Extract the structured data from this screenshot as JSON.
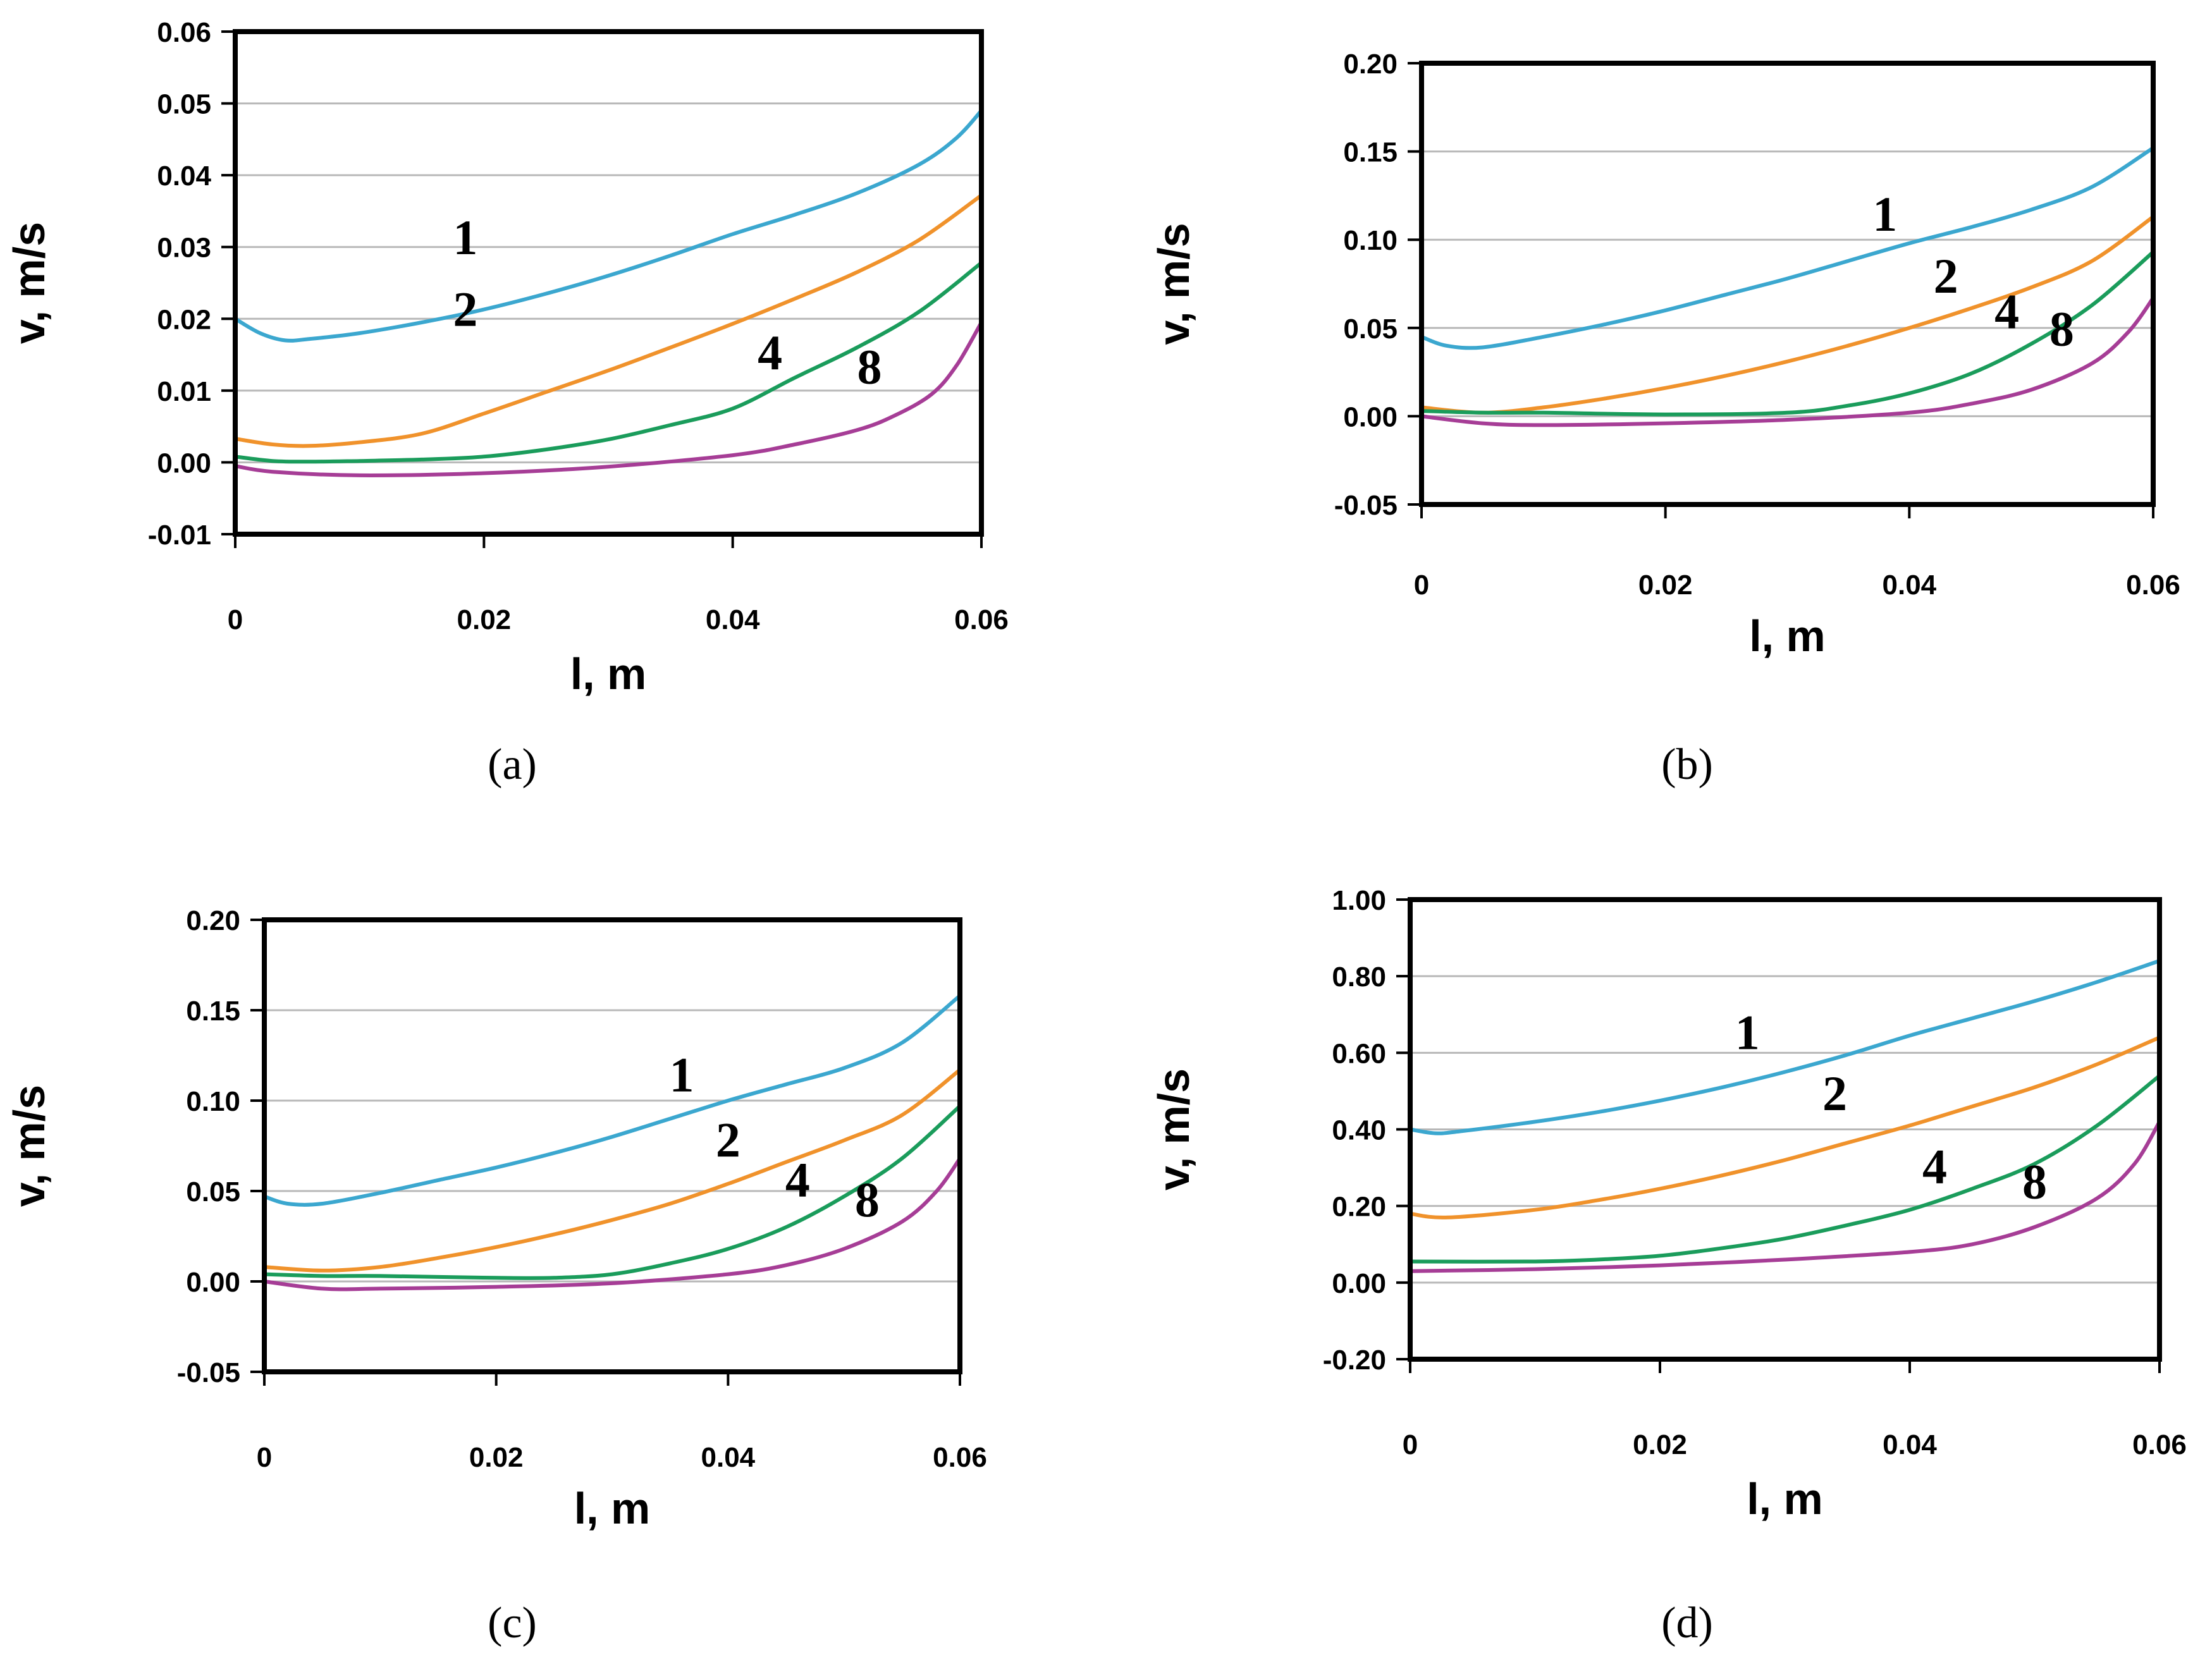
{
  "chart_data": [
    {
      "type": "line",
      "caption": "(a)",
      "xlabel": "l, m",
      "ylabel": "v, m/s",
      "xlim": [
        0,
        0.06
      ],
      "ylim": [
        -0.01,
        0.06
      ],
      "xticks": [
        "0",
        "0.02",
        "0.04",
        "0.06"
      ],
      "yticks": [
        "-0.01",
        "0.00",
        "0.01",
        "0.02",
        "0.03",
        "0.04",
        "0.05",
        "0.06"
      ],
      "series": [
        {
          "name": "1",
          "color": "#3ba7cf",
          "x": [
            0,
            0.002,
            0.004,
            0.006,
            0.01,
            0.015,
            0.02,
            0.025,
            0.03,
            0.035,
            0.04,
            0.045,
            0.05,
            0.055,
            0.058,
            0.06
          ],
          "y": [
            0.02,
            0.018,
            0.017,
            0.0172,
            0.018,
            0.0195,
            0.0213,
            0.0235,
            0.026,
            0.0288,
            0.0318,
            0.0345,
            0.0375,
            0.0415,
            0.0452,
            0.049
          ]
        },
        {
          "name": "2",
          "color": "#f0922b",
          "x": [
            0,
            0.003,
            0.006,
            0.01,
            0.015,
            0.02,
            0.025,
            0.03,
            0.035,
            0.04,
            0.045,
            0.05,
            0.055,
            0.06
          ],
          "y": [
            0.0033,
            0.0025,
            0.0023,
            0.0028,
            0.004,
            0.0068,
            0.0098,
            0.0128,
            0.016,
            0.0193,
            0.0228,
            0.0265,
            0.031,
            0.0372
          ]
        },
        {
          "name": "4",
          "color": "#1a9c5b",
          "x": [
            0,
            0.003,
            0.006,
            0.01,
            0.015,
            0.02,
            0.025,
            0.03,
            0.035,
            0.04,
            0.045,
            0.05,
            0.055,
            0.06
          ],
          "y": [
            0.0008,
            0.0002,
            0.0001,
            0.0002,
            0.0004,
            0.0008,
            0.0018,
            0.0032,
            0.0052,
            0.0075,
            0.0118,
            0.016,
            0.021,
            0.0278
          ]
        },
        {
          "name": "8",
          "color": "#a63d96",
          "x": [
            0,
            0.003,
            0.01,
            0.02,
            0.03,
            0.04,
            0.045,
            0.05,
            0.053,
            0.056,
            0.058,
            0.06
          ],
          "y": [
            -0.0005,
            -0.0013,
            -0.0018,
            -0.0015,
            -0.0006,
            0.001,
            0.0025,
            0.0045,
            0.0065,
            0.0095,
            0.0135,
            0.0195
          ]
        }
      ]
    },
    {
      "type": "line",
      "caption": "(b)",
      "xlabel": "l, m",
      "ylabel": "v, m/s",
      "xlim": [
        0,
        0.06
      ],
      "ylim": [
        -0.05,
        0.2
      ],
      "xticks": [
        "0",
        "0.02",
        "0.04",
        "0.06"
      ],
      "yticks": [
        "-0.05",
        "0.00",
        "0.05",
        "0.10",
        "0.15",
        "0.20"
      ],
      "series": [
        {
          "name": "1",
          "color": "#3ba7cf",
          "x": [
            0,
            0.002,
            0.005,
            0.01,
            0.015,
            0.02,
            0.025,
            0.03,
            0.035,
            0.04,
            0.045,
            0.05,
            0.055,
            0.06
          ],
          "y": [
            0.045,
            0.04,
            0.039,
            0.045,
            0.052,
            0.06,
            0.069,
            0.078,
            0.088,
            0.098,
            0.107,
            0.117,
            0.13,
            0.152
          ]
        },
        {
          "name": "2",
          "color": "#f0922b",
          "x": [
            0,
            0.005,
            0.01,
            0.015,
            0.02,
            0.025,
            0.03,
            0.035,
            0.04,
            0.045,
            0.05,
            0.055,
            0.06
          ],
          "y": [
            0.005,
            0.002,
            0.005,
            0.01,
            0.016,
            0.023,
            0.031,
            0.04,
            0.05,
            0.061,
            0.073,
            0.088,
            0.113
          ]
        },
        {
          "name": "4",
          "color": "#1a9c5b",
          "x": [
            0,
            0.005,
            0.01,
            0.02,
            0.03,
            0.035,
            0.04,
            0.045,
            0.05,
            0.055,
            0.06
          ],
          "y": [
            0.003,
            0.002,
            0.002,
            0.001,
            0.002,
            0.006,
            0.013,
            0.024,
            0.041,
            0.063,
            0.093
          ]
        },
        {
          "name": "8",
          "color": "#a63d96",
          "x": [
            0,
            0.005,
            0.01,
            0.02,
            0.03,
            0.04,
            0.045,
            0.05,
            0.055,
            0.058,
            0.06
          ],
          "y": [
            0,
            -0.004,
            -0.005,
            -0.004,
            -0.002,
            0.002,
            0.007,
            0.015,
            0.03,
            0.048,
            0.067
          ]
        }
      ]
    },
    {
      "type": "line",
      "caption": "(c)",
      "xlabel": "l, m",
      "ylabel": "v, m/s",
      "xlim": [
        0,
        0.06
      ],
      "ylim": [
        -0.05,
        0.2
      ],
      "xticks": [
        "0",
        "0.02",
        "0.04",
        "0.06"
      ],
      "yticks": [
        "-0.05",
        "0.00",
        "0.05",
        "0.10",
        "0.15",
        "0.20"
      ],
      "series": [
        {
          "name": "1",
          "color": "#3ba7cf",
          "x": [
            0,
            0.002,
            0.005,
            0.01,
            0.015,
            0.02,
            0.025,
            0.03,
            0.035,
            0.04,
            0.045,
            0.05,
            0.055,
            0.06
          ],
          "y": [
            0.047,
            0.043,
            0.043,
            0.049,
            0.056,
            0.063,
            0.071,
            0.08,
            0.09,
            0.1,
            0.109,
            0.118,
            0.132,
            0.158
          ]
        },
        {
          "name": "2",
          "color": "#f0922b",
          "x": [
            0,
            0.005,
            0.01,
            0.015,
            0.02,
            0.025,
            0.03,
            0.035,
            0.04,
            0.045,
            0.05,
            0.055,
            0.06
          ],
          "y": [
            0.008,
            0.006,
            0.008,
            0.013,
            0.019,
            0.026,
            0.034,
            0.043,
            0.054,
            0.066,
            0.078,
            0.092,
            0.117
          ]
        },
        {
          "name": "4",
          "color": "#1a9c5b",
          "x": [
            0,
            0.005,
            0.01,
            0.02,
            0.025,
            0.03,
            0.035,
            0.04,
            0.045,
            0.05,
            0.055,
            0.06
          ],
          "y": [
            0.004,
            0.003,
            0.003,
            0.002,
            0.002,
            0.004,
            0.01,
            0.018,
            0.03,
            0.047,
            0.068,
            0.097
          ]
        },
        {
          "name": "8",
          "color": "#a63d96",
          "x": [
            0,
            0.005,
            0.01,
            0.02,
            0.03,
            0.04,
            0.045,
            0.05,
            0.055,
            0.058,
            0.06
          ],
          "y": [
            0,
            -0.004,
            -0.004,
            -0.003,
            -0.001,
            0.004,
            0.009,
            0.018,
            0.033,
            0.05,
            0.068
          ]
        }
      ]
    },
    {
      "type": "line",
      "caption": "(d)",
      "xlabel": "l, m",
      "ylabel": "v, m/s",
      "xlim": [
        0,
        0.06
      ],
      "ylim": [
        -0.2,
        1.0
      ],
      "xticks": [
        "0",
        "0.02",
        "0.04",
        "0.06"
      ],
      "yticks": [
        "-0.20",
        "0.00",
        "0.20",
        "0.40",
        "0.60",
        "0.80",
        "1.00"
      ],
      "series": [
        {
          "name": "1",
          "color": "#3ba7cf",
          "x": [
            0,
            0.002,
            0.004,
            0.01,
            0.015,
            0.02,
            0.025,
            0.03,
            0.035,
            0.04,
            0.045,
            0.05,
            0.055,
            0.06
          ],
          "y": [
            0.4,
            0.39,
            0.395,
            0.42,
            0.445,
            0.475,
            0.51,
            0.55,
            0.595,
            0.645,
            0.69,
            0.735,
            0.785,
            0.84
          ]
        },
        {
          "name": "2",
          "color": "#f0922b",
          "x": [
            0,
            0.003,
            0.01,
            0.015,
            0.02,
            0.025,
            0.03,
            0.035,
            0.04,
            0.045,
            0.05,
            0.055,
            0.06
          ],
          "y": [
            0.18,
            0.17,
            0.19,
            0.215,
            0.245,
            0.28,
            0.32,
            0.365,
            0.41,
            0.46,
            0.51,
            0.57,
            0.64
          ]
        },
        {
          "name": "4",
          "color": "#1a9c5b",
          "x": [
            0,
            0.01,
            0.015,
            0.02,
            0.025,
            0.03,
            0.035,
            0.04,
            0.045,
            0.05,
            0.055,
            0.06
          ],
          "y": [
            0.055,
            0.055,
            0.06,
            0.07,
            0.09,
            0.115,
            0.15,
            0.19,
            0.245,
            0.31,
            0.41,
            0.54
          ]
        },
        {
          "name": "8",
          "color": "#a63d96",
          "x": [
            0,
            0.01,
            0.02,
            0.03,
            0.04,
            0.045,
            0.05,
            0.055,
            0.058,
            0.06
          ],
          "y": [
            0.03,
            0.035,
            0.045,
            0.06,
            0.08,
            0.1,
            0.145,
            0.22,
            0.31,
            0.42
          ]
        }
      ]
    }
  ]
}
